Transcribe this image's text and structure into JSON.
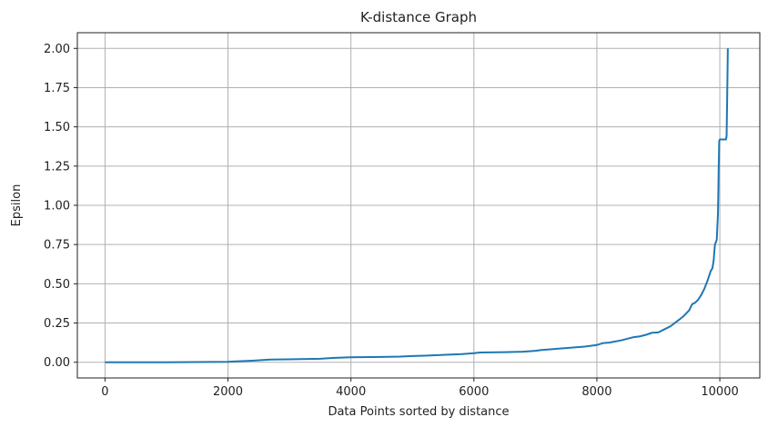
{
  "chart_data": {
    "type": "line",
    "title": "K-distance Graph",
    "xlabel": "Data Points sorted by distance",
    "ylabel": "Epsilon",
    "xlim": [
      -450,
      10650
    ],
    "ylim": [
      -0.1,
      2.1
    ],
    "grid": true,
    "x_ticks": [
      0,
      2000,
      4000,
      6000,
      8000,
      10000
    ],
    "y_ticks": [
      0.0,
      0.25,
      0.5,
      0.75,
      1.0,
      1.25,
      1.5,
      1.75,
      2.0
    ],
    "series": [
      {
        "color": "#1f77b4",
        "x": [
          0,
          1000,
          2000,
          2400,
          2600,
          2700,
          3000,
          3500,
          3700,
          4000,
          4500,
          4800,
          5000,
          5200,
          5500,
          5800,
          6000,
          6100,
          6500,
          6800,
          7000,
          7100,
          7500,
          7800,
          8000,
          8100,
          8200,
          8400,
          8600,
          8700,
          8800,
          8900,
          9000,
          9100,
          9200,
          9300,
          9400,
          9500,
          9550,
          9600,
          9650,
          9700,
          9750,
          9800,
          9850,
          9880,
          9900,
          9920,
          9950,
          9970,
          9980,
          9990,
          10000,
          10050,
          10100,
          10110,
          10120,
          10130
        ],
        "y": [
          0.0,
          0.0,
          0.003,
          0.01,
          0.015,
          0.017,
          0.019,
          0.022,
          0.027,
          0.032,
          0.034,
          0.036,
          0.04,
          0.042,
          0.047,
          0.052,
          0.058,
          0.062,
          0.064,
          0.067,
          0.073,
          0.078,
          0.09,
          0.1,
          0.11,
          0.122,
          0.125,
          0.14,
          0.16,
          0.165,
          0.175,
          0.188,
          0.19,
          0.21,
          0.23,
          0.26,
          0.29,
          0.33,
          0.37,
          0.38,
          0.4,
          0.43,
          0.47,
          0.52,
          0.58,
          0.6,
          0.65,
          0.75,
          0.78,
          0.95,
          1.2,
          1.41,
          1.42,
          1.42,
          1.42,
          1.44,
          1.7,
          2.0
        ]
      }
    ]
  }
}
